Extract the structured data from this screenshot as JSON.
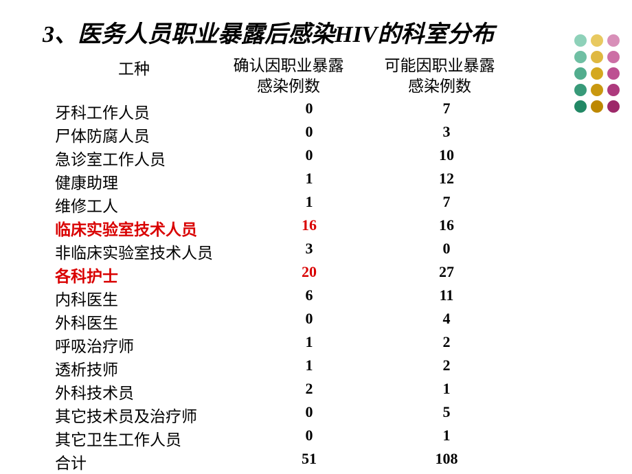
{
  "title": "3、医务人员职业暴露后感染HIV的科室分布",
  "headers": {
    "col1": "工种",
    "col2_line1": "确认因职业暴露",
    "col2_line2": "感染例数",
    "col3_line1": "可能因职业暴露",
    "col3_line2": "感染例数"
  },
  "rows": [
    {
      "type": "牙科工作人员",
      "confirmed": "0",
      "possible": "7",
      "highlight": false
    },
    {
      "type": "尸体防腐人员",
      "confirmed": "0",
      "possible": "3",
      "highlight": false
    },
    {
      "type": "急诊室工作人员",
      "confirmed": "0",
      "possible": "10",
      "highlight": false
    },
    {
      "type": "健康助理",
      "confirmed": "1",
      "possible": "12",
      "highlight": false
    },
    {
      "type": "维修工人",
      "confirmed": "1",
      "possible": "7",
      "highlight": false
    },
    {
      "type": "临床实验室技术人员",
      "confirmed": "16",
      "possible": "16",
      "highlight": true
    },
    {
      "type": "非临床实验室技术人员",
      "confirmed": "3",
      "possible": "0",
      "highlight": false
    },
    {
      "type": "各科护士",
      "confirmed": "20",
      "possible": "27",
      "highlight": true
    },
    {
      "type": "内科医生",
      "confirmed": "6",
      "possible": "11",
      "highlight": false
    },
    {
      "type": "外科医生",
      "confirmed": "0",
      "possible": "4",
      "highlight": false
    },
    {
      "type": "呼吸治疗师",
      "confirmed": "1",
      "possible": "2",
      "highlight": false
    },
    {
      "type": "透析技师",
      "confirmed": "1",
      "possible": "2",
      "highlight": false
    },
    {
      "type": "外科技术员",
      "confirmed": "2",
      "possible": "1",
      "highlight": false
    },
    {
      "type": "其它技术员及治疗师",
      "confirmed": "0",
      "possible": "5",
      "highlight": false
    },
    {
      "type": "其它卫生工作人员",
      "confirmed": "0",
      "possible": "1",
      "highlight": false
    },
    {
      "type": "合计",
      "confirmed": "51",
      "possible": "108",
      "highlight": false
    }
  ],
  "dots": {
    "colors": [
      "#8ed1b9",
      "#e8c960",
      "#d88fb8",
      "#6fbfa3",
      "#dfb840",
      "#cc6fa5",
      "#52ad8e",
      "#d4a820",
      "#bd5091",
      "#389a79",
      "#c99810",
      "#ad3a7d",
      "#228865",
      "#bd8800",
      "#9d2869"
    ]
  },
  "styling": {
    "title_color": "#000000",
    "text_color": "#000000",
    "highlight_color": "#d90000",
    "background_color": "#ffffff",
    "title_fontsize": 34,
    "body_fontsize": 23
  }
}
